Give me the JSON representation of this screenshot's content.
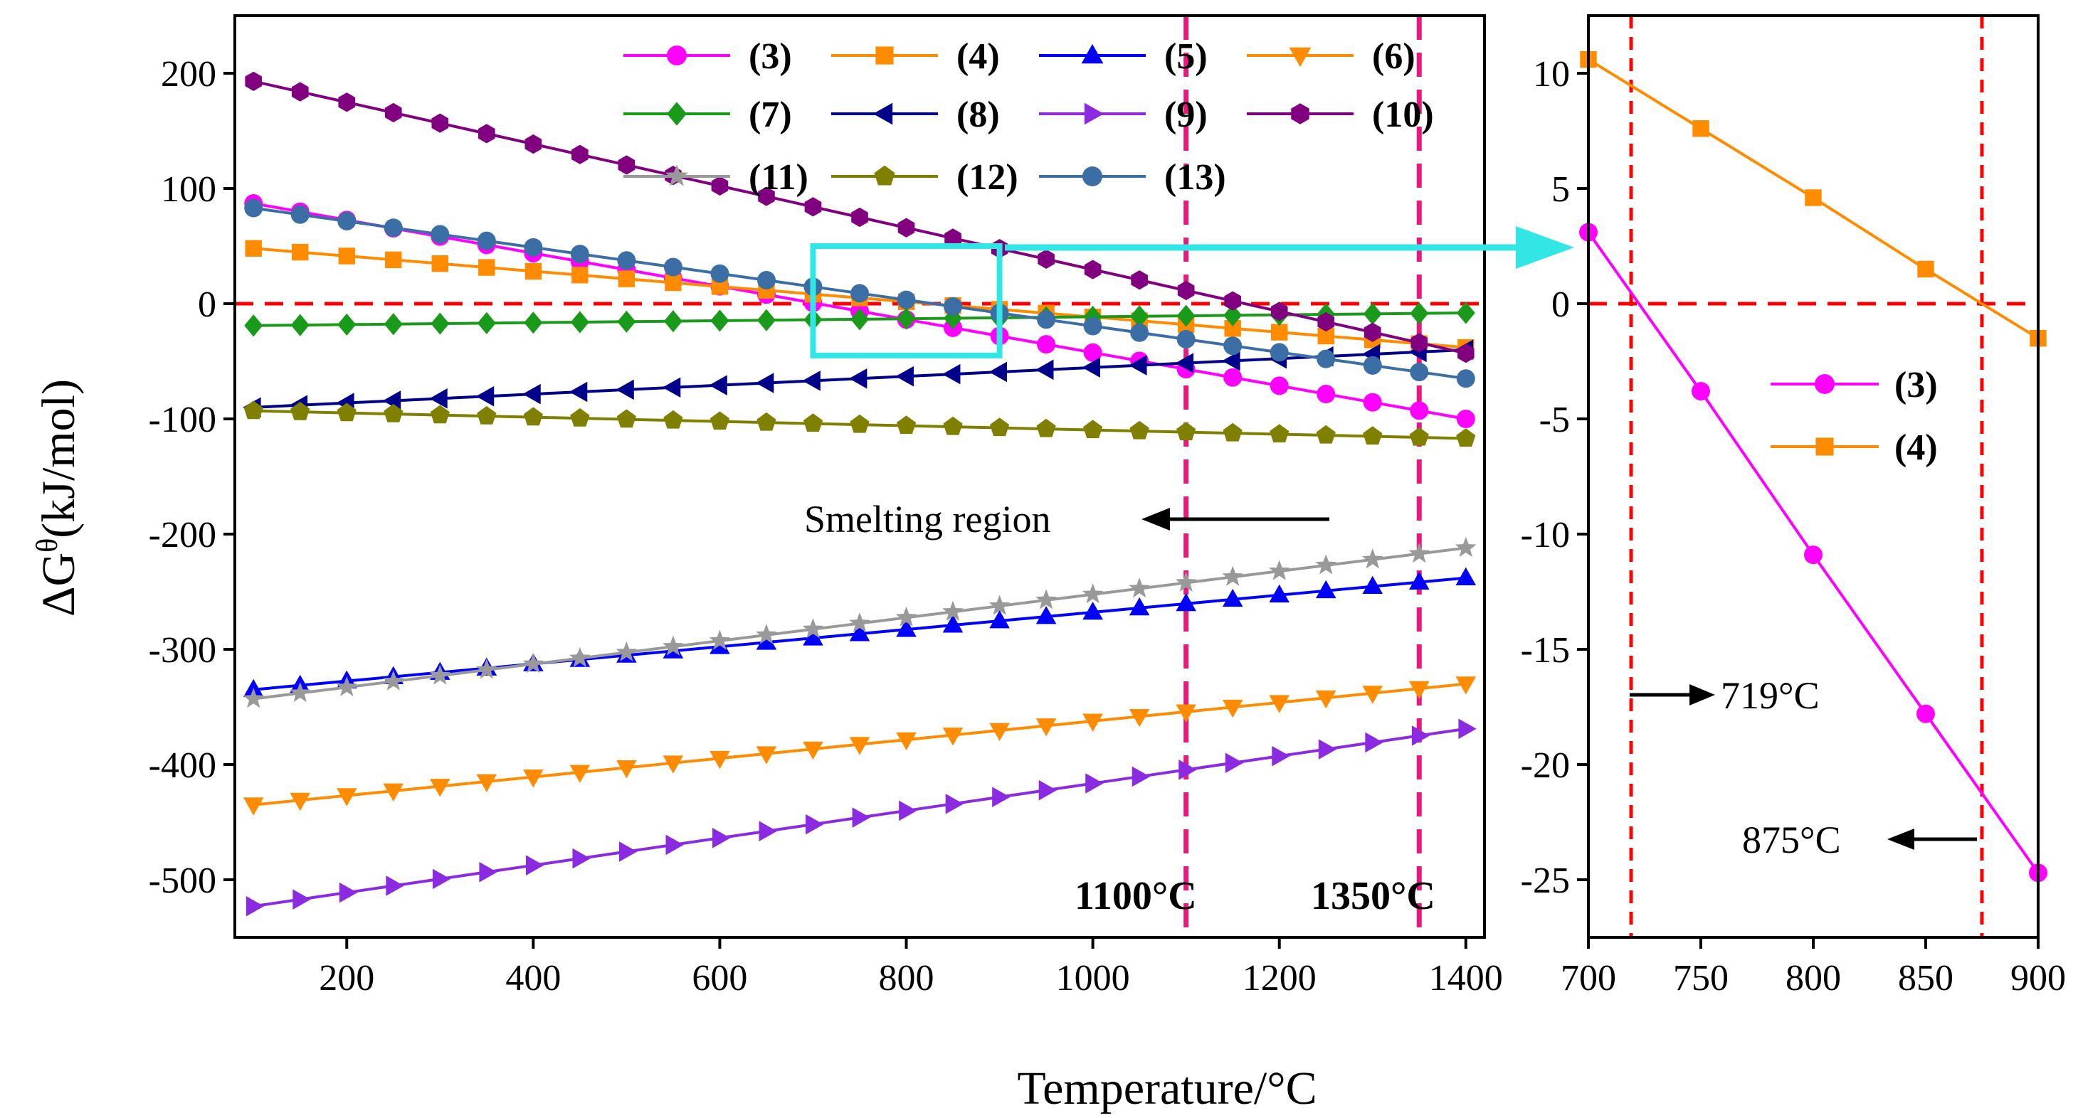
{
  "chart_data": [
    {
      "type": "line",
      "xlabel": "Temperature/°C",
      "ylabel": "ΔG",
      "ylabel_sup": "θ",
      "ylabel_unit": "(kJ/mol)",
      "xlim": [
        80,
        1420
      ],
      "ylim": [
        -550,
        250
      ],
      "xticks": [
        200,
        400,
        600,
        800,
        1000,
        1200,
        1400
      ],
      "yticks": [
        200,
        100,
        0,
        -100,
        -200,
        -300,
        -400,
        -500
      ],
      "x": [
        100,
        150,
        200,
        250,
        300,
        350,
        400,
        450,
        500,
        550,
        600,
        650,
        700,
        750,
        800,
        850,
        900,
        950,
        1000,
        1050,
        1100,
        1150,
        1200,
        1250,
        1300,
        1350,
        1400
      ],
      "series": [
        {
          "name": "(3)",
          "color": "#ff00ff",
          "marker": "circle",
          "start": 87,
          "end": -100
        },
        {
          "name": "(4)",
          "color": "#ff8c00",
          "marker": "square",
          "start": 48,
          "end": -38
        },
        {
          "name": "(5)",
          "color": "#0000ff",
          "marker": "triangle-up",
          "start": -335,
          "end": -238
        },
        {
          "name": "(6)",
          "color": "#ff8c00",
          "marker": "triangle-down",
          "start": -435,
          "end": -330
        },
        {
          "name": "(7)",
          "color": "#1a9a1a",
          "marker": "diamond",
          "start": -19,
          "end": -8
        },
        {
          "name": "(8)",
          "color": "#00008b",
          "marker": "triangle-left",
          "start": -90,
          "end": -40
        },
        {
          "name": "(9)",
          "color": "#8a2be2",
          "marker": "triangle-right",
          "start": -523,
          "end": -369
        },
        {
          "name": "(10)",
          "color": "#800080",
          "marker": "hexagon",
          "start": 193,
          "end": -43
        },
        {
          "name": "(11)",
          "color": "#999999",
          "marker": "star",
          "start": -343,
          "end": -212
        },
        {
          "name": "(12)",
          "color": "#808000",
          "marker": "pentagon",
          "start": -93,
          "end": -117
        },
        {
          "name": "(13)",
          "color": "#3a6ea5",
          "marker": "sphere",
          "start": 83,
          "end": -65
        }
      ],
      "reference_line": {
        "y": 0,
        "color": "#ff0000"
      },
      "vlines": [
        {
          "x": 1100,
          "label": "1100°C",
          "color": "#e8197a"
        },
        {
          "x": 1350,
          "label": "1350°C",
          "color": "#e8197a"
        }
      ],
      "zoom_box": {
        "x": [
          700,
          900
        ],
        "y": [
          -45,
          50
        ],
        "color": "#33e6e6"
      },
      "annotation": "Smelting region",
      "legend_position": "top"
    },
    {
      "type": "line",
      "xlim": [
        700,
        900
      ],
      "ylim": [
        -27.5,
        12.5
      ],
      "xticks": [
        700,
        750,
        800,
        850,
        900
      ],
      "yticks": [
        10,
        5,
        0,
        -5,
        -10,
        -15,
        -20,
        -25
      ],
      "series": [
        {
          "name": "(3)",
          "color": "#ff00ff",
          "marker": "circle",
          "x": [
            700,
            750,
            800,
            850,
            900
          ],
          "values": [
            3.1,
            -3.8,
            -10.9,
            -17.8,
            -24.7
          ]
        },
        {
          "name": "(4)",
          "color": "#ff8c00",
          "marker": "square",
          "x": [
            700,
            750,
            800,
            850,
            900
          ],
          "values": [
            10.6,
            7.6,
            4.6,
            1.5,
            -1.5
          ]
        }
      ],
      "reference_line": {
        "y": 0,
        "color": "#ff0000"
      },
      "vlines": [
        {
          "x": 719,
          "label": "719°C",
          "color": "#ff0000"
        },
        {
          "x": 875,
          "label": "875°C",
          "color": "#ff0000"
        }
      ],
      "legend_position": "middle-right"
    }
  ]
}
